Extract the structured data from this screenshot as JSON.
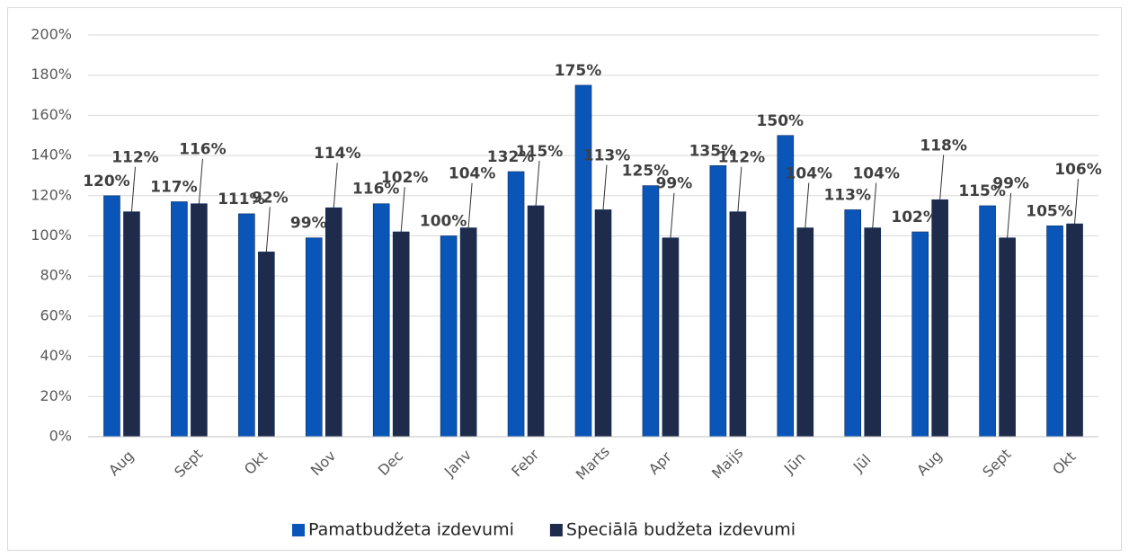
{
  "chart_data": {
    "type": "bar",
    "categories": [
      "Aug",
      "Sept",
      "Okt",
      "Nov",
      "Dec",
      "Janv",
      "Febr",
      "Marts",
      "Apr",
      "Maijs",
      "Jūn",
      "Jūl",
      "Aug",
      "Sept",
      "Okt"
    ],
    "series": [
      {
        "name": "Pamatbudžeta izdevumi",
        "color": "#0a56b8",
        "values": [
          120,
          117,
          111,
          99,
          116,
          100,
          132,
          175,
          125,
          135,
          150,
          113,
          102,
          115,
          105
        ],
        "value_labels": [
          "120%",
          "117%",
          "111%",
          "99%",
          "116%",
          "100%",
          "132%",
          "175%",
          "125%",
          "135%",
          "150%",
          "113%",
          "102%",
          "115%",
          "105%"
        ]
      },
      {
        "name": "Speciālā budžeta izdevumi",
        "color": "#1f2b4a",
        "values": [
          112,
          116,
          92,
          114,
          102,
          104,
          115,
          113,
          99,
          112,
          104,
          104,
          118,
          99,
          106
        ],
        "value_labels": [
          "112%",
          "116%",
          "92%",
          "114%",
          "102%",
          "104%",
          "115%",
          "113%",
          "99%",
          "112%",
          "104%",
          "104%",
          "118%",
          "99%",
          "106%"
        ]
      }
    ],
    "ylim": [
      0,
      200
    ],
    "yticks": [
      {
        "value": 0,
        "label": "0%"
      },
      {
        "value": 20,
        "label": "20%"
      },
      {
        "value": 40,
        "label": "40%"
      },
      {
        "value": 60,
        "label": "60%"
      },
      {
        "value": 80,
        "label": "80%"
      },
      {
        "value": 100,
        "label": "100%"
      },
      {
        "value": 120,
        "label": "120%"
      },
      {
        "value": 140,
        "label": "140%"
      },
      {
        "value": 160,
        "label": "160%"
      },
      {
        "value": 180,
        "label": "180%"
      },
      {
        "value": 200,
        "label": "200%"
      }
    ],
    "grid": true,
    "legend": "bottom"
  }
}
